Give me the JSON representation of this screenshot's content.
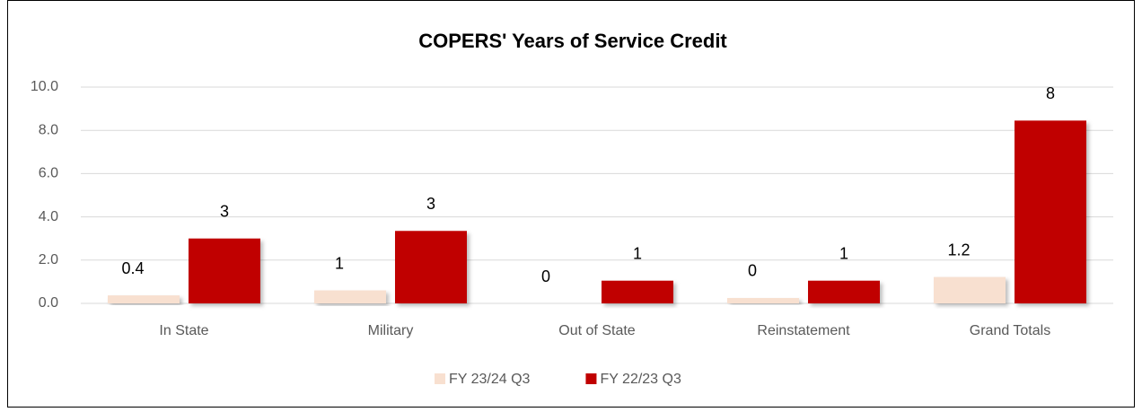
{
  "chart_data": {
    "type": "bar",
    "title": "COPERS' Years of Service Credit",
    "categories": [
      "In State",
      "Military",
      "Out of State",
      "Reinstatement",
      "Grand Totals"
    ],
    "series": [
      {
        "name": "FY 23/24 Q3",
        "color": "#f8e0d0",
        "values": [
          0.37,
          0.6,
          0,
          0.25,
          1.22
        ],
        "value_labels": [
          "0.4",
          "1",
          "0",
          "0",
          "1.2"
        ]
      },
      {
        "name": "FY 22/23 Q3",
        "color": "#c00000",
        "values": [
          3,
          3.35,
          1.05,
          1.05,
          8.45
        ],
        "value_labels": [
          "3",
          "3",
          "1",
          "1",
          "8"
        ]
      }
    ],
    "ylim": [
      0,
      10
    ],
    "yticks": [
      {
        "value": 0,
        "label": "0.0"
      },
      {
        "value": 2,
        "label": "2.0"
      },
      {
        "value": 4,
        "label": "4.0"
      },
      {
        "value": 6,
        "label": "6.0"
      },
      {
        "value": 8,
        "label": "8.0"
      },
      {
        "value": 10,
        "label": "10.0"
      }
    ],
    "grid": true,
    "legend": "bottom"
  }
}
